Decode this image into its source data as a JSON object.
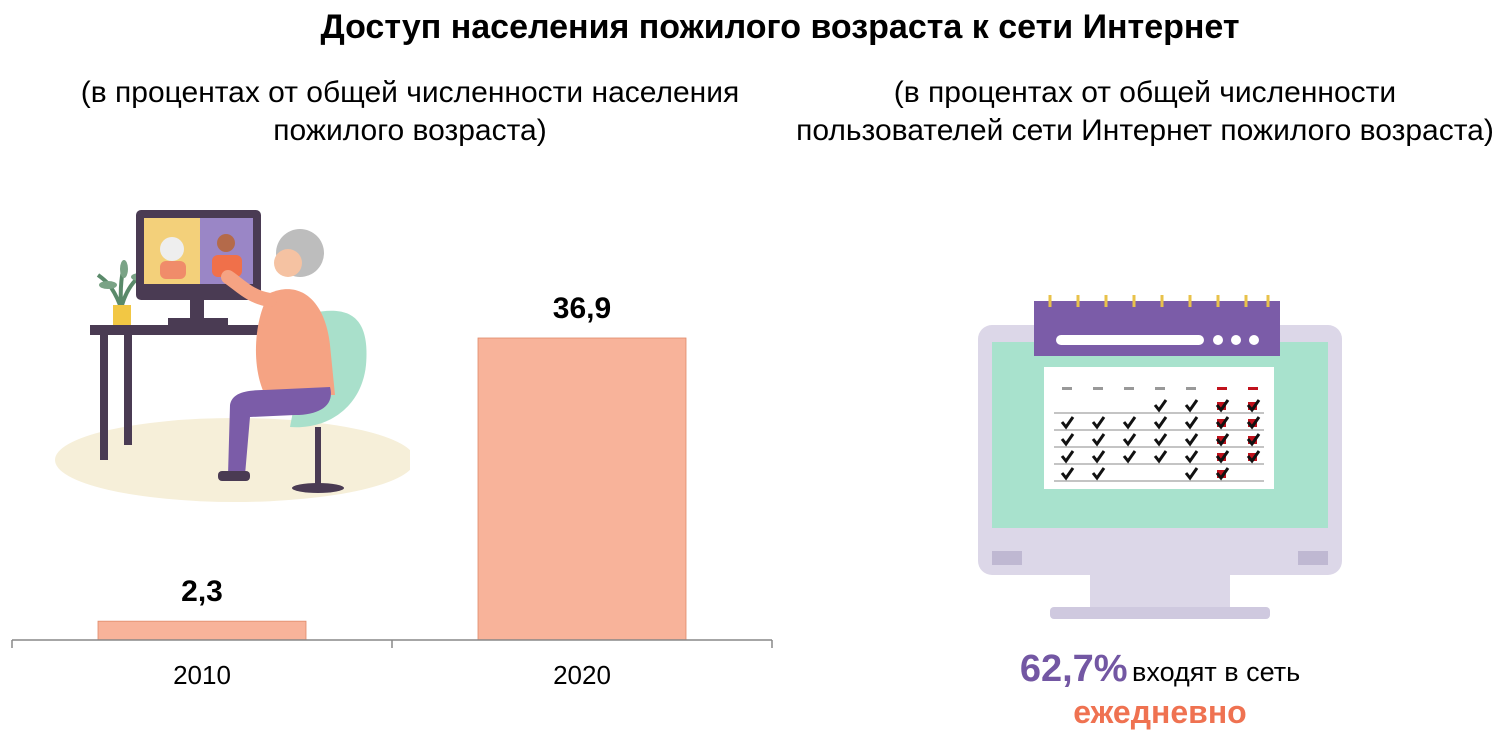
{
  "title": "Доступ населения пожилого возраста к сети Интернет",
  "subtitle_left": "(в процентах от общей численности населения пожилого возраста)",
  "subtitle_right": "(в процентах от общей численности пользователей сети Интернет пожилого возраста)",
  "chart_data": {
    "type": "bar",
    "categories": [
      "2010",
      "2020"
    ],
    "values": [
      2.3,
      36.9
    ],
    "value_labels": [
      "2,3",
      "36,9"
    ],
    "bar_color": "#f8b39a",
    "ylim": [
      0,
      36.9
    ]
  },
  "stat": {
    "percent": "62,7%",
    "text": "входят в сеть",
    "emphasis": "ежедневно",
    "percent_color": "#7357a3",
    "emphasis_color": "#ef7251"
  },
  "icons": {
    "left": "elderly-woman-video-call-illustration",
    "right": "calendar-on-monitor-icon"
  }
}
